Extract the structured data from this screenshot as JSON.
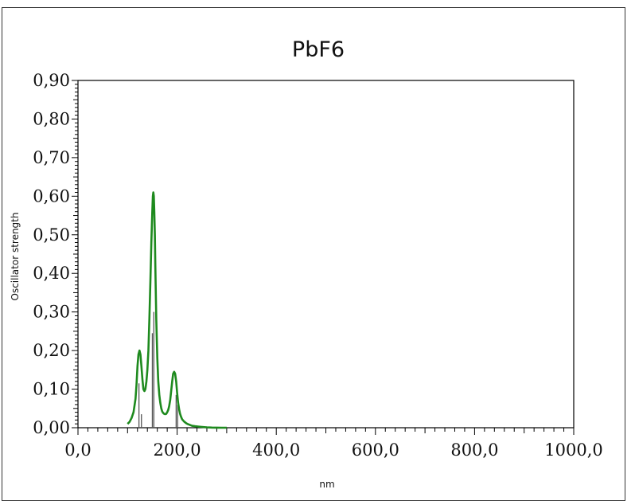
{
  "chart_data": {
    "type": "line",
    "title": "PbF6",
    "xlabel": "nm",
    "ylabel": "Oscillator strength",
    "xlim": [
      0,
      1000
    ],
    "ylim": [
      0,
      0.9
    ],
    "x_ticks": [
      0,
      200,
      400,
      600,
      800,
      1000
    ],
    "x_tick_labels": [
      "0,0",
      "200,0",
      "400,0",
      "600,0",
      "800,0",
      "1000,0"
    ],
    "y_ticks": [
      0,
      0.1,
      0.2,
      0.3,
      0.4,
      0.5,
      0.6,
      0.7,
      0.8,
      0.9
    ],
    "y_tick_labels": [
      "0,00",
      "0,10",
      "0,20",
      "0,30",
      "0,40",
      "0,50",
      "0,60",
      "0,70",
      "0,80",
      "0,90"
    ],
    "grid": false,
    "colors": {
      "spectrum": "#1e8a1e",
      "sticks": "#555555"
    },
    "series": [
      {
        "kind": "spectrum",
        "x": [
          100,
          104,
          108,
          112,
          116,
          118,
          120,
          122,
          124,
          126,
          128,
          130,
          132,
          134,
          136,
          138,
          140,
          142,
          144,
          146,
          148,
          150,
          151,
          152,
          153,
          154,
          155,
          156,
          158,
          160,
          162,
          164,
          166,
          168,
          170,
          172,
          174,
          176,
          178,
          180,
          182,
          184,
          186,
          188,
          190,
          192,
          194,
          196,
          198,
          200,
          202,
          204,
          206,
          208,
          210,
          214,
          218,
          222,
          226,
          230,
          236,
          242,
          250,
          260,
          270,
          280,
          290,
          300
        ],
        "values": [
          0.01,
          0.015,
          0.025,
          0.04,
          0.075,
          0.11,
          0.16,
          0.19,
          0.2,
          0.19,
          0.16,
          0.125,
          0.1,
          0.095,
          0.1,
          0.12,
          0.15,
          0.2,
          0.28,
          0.38,
          0.48,
          0.56,
          0.6,
          0.61,
          0.6,
          0.56,
          0.5,
          0.42,
          0.28,
          0.18,
          0.12,
          0.085,
          0.065,
          0.05,
          0.042,
          0.038,
          0.036,
          0.035,
          0.036,
          0.04,
          0.046,
          0.056,
          0.072,
          0.095,
          0.12,
          0.14,
          0.145,
          0.14,
          0.12,
          0.09,
          0.065,
          0.048,
          0.036,
          0.028,
          0.022,
          0.016,
          0.012,
          0.009,
          0.007,
          0.005,
          0.004,
          0.003,
          0.002,
          0.001,
          0.0005,
          0.0003,
          0.0001,
          0
        ]
      },
      {
        "kind": "sticks",
        "x": [
          123,
          128,
          150,
          153,
          198,
          201
        ],
        "values": [
          0.115,
          0.035,
          0.245,
          0.3,
          0.085,
          0.06
        ]
      }
    ]
  }
}
